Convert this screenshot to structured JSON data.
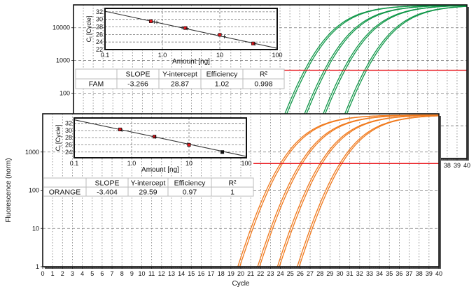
{
  "chart_data": [
    {
      "type": "line",
      "panel": "back",
      "xlim": [
        0,
        40
      ],
      "ylim": [
        1,
        50000
      ],
      "yscale": "log",
      "grid": true,
      "x_ticks": [
        0,
        1,
        2,
        3,
        4,
        5,
        6,
        7,
        8,
        9,
        10,
        11,
        12,
        13,
        14,
        15,
        16,
        17,
        18,
        19,
        20,
        21,
        22,
        23,
        24,
        25,
        26,
        27,
        28,
        29,
        30,
        31,
        32,
        33,
        34,
        35,
        36,
        37,
        38,
        39,
        40
      ],
      "y_ticks": [
        "1",
        "10",
        "100",
        "1000",
        "10000"
      ],
      "threshold": 500,
      "color": "#12984a",
      "threshold_color": "#e8151b",
      "series": [
        {
          "ct": [
            23.5,
            23.7,
            25.5,
            25.7,
            27.4,
            27.6,
            29.6,
            29.8
          ]
        }
      ]
    },
    {
      "type": "line",
      "panel": "front",
      "xlabel": "Cycle",
      "ylabel": "Fluorescence (norm)",
      "xlim": [
        0,
        40
      ],
      "ylim": [
        1,
        10000
      ],
      "yscale": "log",
      "grid": true,
      "x_ticks": [
        0,
        1,
        2,
        3,
        4,
        5,
        6,
        7,
        8,
        9,
        10,
        11,
        12,
        13,
        14,
        15,
        16,
        17,
        18,
        19,
        20,
        21,
        22,
        23,
        24,
        25,
        26,
        27,
        28,
        29,
        30,
        31,
        32,
        33,
        34,
        35,
        36,
        37,
        38,
        39,
        40
      ],
      "y_ticks": [
        "1",
        "10",
        "100",
        "1000"
      ],
      "threshold": 500,
      "color": "#f07a1e",
      "threshold_color": "#e8151b",
      "series": [
        {
          "ct": [
            24.0,
            24.2,
            26.0,
            26.2,
            28.0,
            28.2,
            30.0,
            30.2
          ]
        }
      ]
    },
    {
      "type": "scatter",
      "panel": "FAM standard curve",
      "xlabel": "Amount [ng]",
      "ylabel_main": "C",
      "ylabel_sub": "t",
      "ylabel_unit": "[Cycle]",
      "xscale": "log",
      "xlim": [
        0.1,
        100
      ],
      "ylim": [
        22,
        32.9
      ],
      "x_ticks": [
        "0.1",
        "1.0",
        "10",
        "100"
      ],
      "y_ticks": [
        22,
        24,
        26,
        28,
        30,
        32
      ],
      "fit": {
        "slope": -3.266,
        "intercept": 28.87
      },
      "points": [
        {
          "amount": 0.63,
          "ct": 29.5,
          "marker": "square-red"
        },
        {
          "amount": 0.72,
          "ct": 29.3,
          "marker": "cross"
        },
        {
          "amount": 0.8,
          "ct": 29.2,
          "marker": "cross"
        },
        {
          "amount": 2.2,
          "ct": 27.8,
          "marker": "cross"
        },
        {
          "amount": 2.5,
          "ct": 27.7,
          "marker": "square-red"
        },
        {
          "amount": 2.7,
          "ct": 27.6,
          "marker": "cross"
        },
        {
          "amount": 10,
          "ct": 25.9,
          "marker": "square-red"
        },
        {
          "amount": 12,
          "ct": 25.4,
          "marker": "cross"
        },
        {
          "amount": 38,
          "ct": 23.6,
          "marker": "square-red"
        },
        {
          "amount": 41,
          "ct": 23.5,
          "marker": "cross"
        }
      ],
      "table": {
        "headers": [
          "",
          "SLOPE",
          "Y-intercept",
          "Efficiency",
          "R²"
        ],
        "row": [
          "FAM",
          "-3.266",
          "28.87",
          "1.02",
          "0.998"
        ]
      }
    },
    {
      "type": "scatter",
      "panel": "ORANGE standard curve",
      "xlabel": "Amount [ng]",
      "ylabel_main": "C",
      "ylabel_sub": "t",
      "ylabel_unit": "[Cycle]",
      "xscale": "log",
      "xlim": [
        0.1,
        100
      ],
      "ylim": [
        22.4,
        33.5
      ],
      "x_ticks": [
        "0.1",
        "1.0",
        "10",
        "100"
      ],
      "y_ticks": [
        24,
        26,
        28,
        30,
        32
      ],
      "fit": {
        "slope": -3.404,
        "intercept": 29.59
      },
      "points": [
        {
          "amount": 0.63,
          "ct": 30.3,
          "marker": "square-red"
        },
        {
          "amount": 0.68,
          "ct": 30.1,
          "marker": "cross"
        },
        {
          "amount": 2.5,
          "ct": 28.3,
          "marker": "square-red"
        },
        {
          "amount": 2.6,
          "ct": 28.2,
          "marker": "cross"
        },
        {
          "amount": 9.5,
          "ct": 26.3,
          "marker": "cross"
        },
        {
          "amount": 10,
          "ct": 26.0,
          "marker": "square-red"
        },
        {
          "amount": 38,
          "ct": 24.0,
          "marker": "square-black"
        }
      ],
      "table": {
        "headers": [
          "",
          "SLOPE",
          "Y-intercept",
          "Efficiency",
          "R²"
        ],
        "row": [
          "ORANGE",
          "-3.404",
          "29.59",
          "0.97",
          "1"
        ]
      }
    }
  ]
}
